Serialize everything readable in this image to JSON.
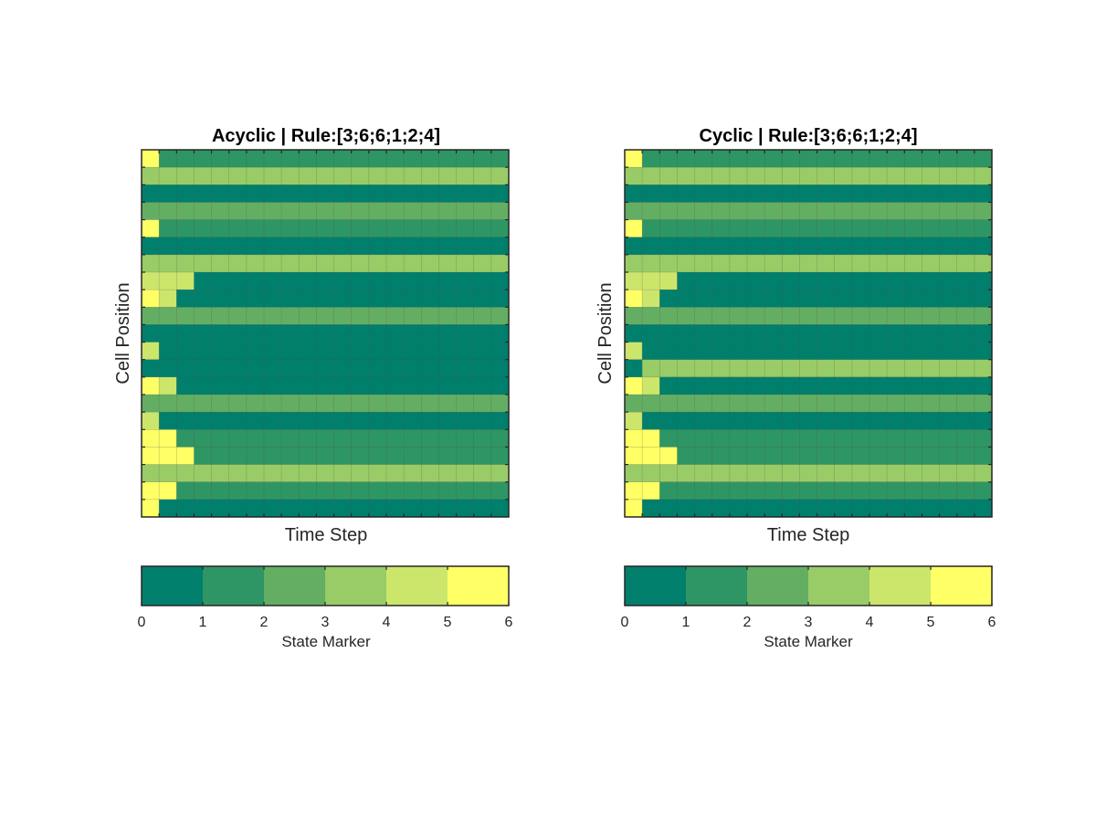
{
  "colors": {
    "state_colors": [
      "#00806c",
      "#2e9664",
      "#64ae64",
      "#99cc66",
      "#cce66c",
      "#ffff66"
    ],
    "grid_line": "#4d4d4d",
    "axes": "#262626"
  },
  "chart_data": [
    {
      "type": "heatmap",
      "title": "Acyclic | Rule:[3;6;6;1;2;4]",
      "xlabel": "Time Step",
      "ylabel": "Cell Position",
      "grid": true,
      "n_steps": 21,
      "n_cells": 21,
      "rows": [
        {
          "first": [
            6
          ],
          "rest": 2
        },
        {
          "first": [],
          "rest": 4
        },
        {
          "first": [],
          "rest": 1
        },
        {
          "first": [],
          "rest": 3
        },
        {
          "first": [
            6
          ],
          "rest": 2
        },
        {
          "first": [],
          "rest": 1
        },
        {
          "first": [],
          "rest": 4
        },
        {
          "first": [
            5,
            5,
            5
          ],
          "rest": 1
        },
        {
          "first": [
            6,
            5
          ],
          "rest": 1
        },
        {
          "first": [],
          "rest": 3
        },
        {
          "first": [],
          "rest": 1
        },
        {
          "first": [
            5
          ],
          "rest": 1
        },
        {
          "first": [],
          "rest": 1
        },
        {
          "first": [
            6,
            5
          ],
          "rest": 1
        },
        {
          "first": [],
          "rest": 3
        },
        {
          "first": [
            5
          ],
          "rest": 1
        },
        {
          "first": [
            6,
            6
          ],
          "rest": 2
        },
        {
          "first": [
            6,
            6,
            6
          ],
          "rest": 2
        },
        {
          "first": [],
          "rest": 4
        },
        {
          "first": [
            6,
            6
          ],
          "rest": 2
        },
        {
          "first": [
            6
          ],
          "rest": 1
        }
      ],
      "colorbar": {
        "label": "State Marker",
        "ticks": [
          "0",
          "1",
          "2",
          "3",
          "4",
          "5",
          "6"
        ],
        "range": [
          0,
          6
        ]
      }
    },
    {
      "type": "heatmap",
      "title": "Cyclic | Rule:[3;6;6;1;2;4]",
      "xlabel": "Time Step",
      "ylabel": "Cell Position",
      "grid": true,
      "n_steps": 21,
      "n_cells": 21,
      "rows": [
        {
          "first": [
            6
          ],
          "rest": 2
        },
        {
          "first": [],
          "rest": 4
        },
        {
          "first": [],
          "rest": 1
        },
        {
          "first": [],
          "rest": 3
        },
        {
          "first": [
            6
          ],
          "rest": 2
        },
        {
          "first": [],
          "rest": 1
        },
        {
          "first": [],
          "rest": 4
        },
        {
          "first": [
            5,
            5,
            5
          ],
          "rest": 1
        },
        {
          "first": [
            6,
            5
          ],
          "rest": 1
        },
        {
          "first": [],
          "rest": 3
        },
        {
          "first": [],
          "rest": 1
        },
        {
          "first": [
            5
          ],
          "rest": 1
        },
        {
          "first": [
            1
          ],
          "rest": 4
        },
        {
          "first": [
            6,
            5
          ],
          "rest": 1
        },
        {
          "first": [],
          "rest": 3
        },
        {
          "first": [
            5
          ],
          "rest": 1
        },
        {
          "first": [
            6,
            6
          ],
          "rest": 2
        },
        {
          "first": [
            6,
            6,
            6
          ],
          "rest": 2
        },
        {
          "first": [],
          "rest": 4
        },
        {
          "first": [
            6,
            6
          ],
          "rest": 2
        },
        {
          "first": [
            6
          ],
          "rest": 1
        }
      ],
      "colorbar": {
        "label": "State Marker",
        "ticks": [
          "0",
          "1",
          "2",
          "3",
          "4",
          "5",
          "6"
        ],
        "range": [
          0,
          6
        ]
      }
    }
  ]
}
